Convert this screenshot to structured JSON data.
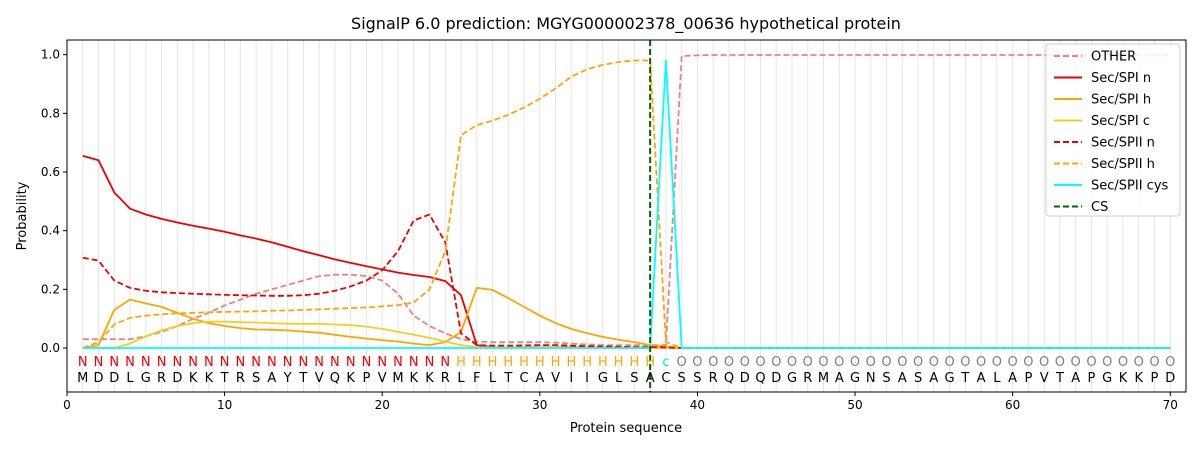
{
  "chart_data": {
    "type": "line",
    "title": "SignalP 6.0 prediction: MGYG000002378_00636 hypothetical protein",
    "xlabel": "Protein sequence",
    "ylabel": "Probability",
    "xlim": [
      0,
      71
    ],
    "ylim": [
      -0.15,
      1.05
    ],
    "xticks": [
      0,
      10,
      20,
      30,
      40,
      50,
      60,
      70
    ],
    "yticks": [
      0.0,
      0.2,
      0.4,
      0.6,
      0.8,
      1.0
    ],
    "grid": "vertical lines at each residue",
    "legend_position": "top-right",
    "residues": [
      "M",
      "D",
      "D",
      "L",
      "G",
      "R",
      "D",
      "K",
      "K",
      "T",
      "R",
      "S",
      "A",
      "Y",
      "T",
      "V",
      "Q",
      "K",
      "P",
      "V",
      "M",
      "K",
      "K",
      "R",
      "L",
      "F",
      "L",
      "T",
      "C",
      "A",
      "V",
      "I",
      "I",
      "G",
      "L",
      "S",
      "A",
      "C",
      "S",
      "S",
      "R",
      "Q",
      "D",
      "Q",
      "D",
      "G",
      "R",
      "M",
      "A",
      "G",
      "N",
      "S",
      "A",
      "S",
      "A",
      "G",
      "T",
      "A",
      "L",
      "A",
      "P",
      "V",
      "T",
      "A",
      "P",
      "G",
      "K",
      "K",
      "P",
      "D"
    ],
    "labels": [
      "N",
      "N",
      "N",
      "N",
      "N",
      "N",
      "N",
      "N",
      "N",
      "N",
      "N",
      "N",
      "N",
      "N",
      "N",
      "N",
      "N",
      "N",
      "N",
      "N",
      "N",
      "N",
      "N",
      "N",
      "H",
      "H",
      "H",
      "H",
      "H",
      "H",
      "H",
      "H",
      "H",
      "H",
      "H",
      "H",
      "H",
      "C",
      "O",
      "O",
      "O",
      "O",
      "O",
      "O",
      "O",
      "O",
      "O",
      "O",
      "O",
      "O",
      "O",
      "O",
      "O",
      "O",
      "O",
      "O",
      "O",
      "O",
      "O",
      "O",
      "O",
      "O",
      "O",
      "O",
      "O",
      "O",
      "O",
      "O",
      "O",
      "O"
    ],
    "label_colors": {
      "N": "#ee0000",
      "H": "#ffa500",
      "C": "#00e5e5",
      "O": "#808080"
    },
    "cleavage_site": 37,
    "series": [
      {
        "name": "OTHER",
        "color": "#f08080",
        "dash": true,
        "values": [
          0.03,
          0.03,
          0.03,
          0.03,
          0.04,
          0.055,
          0.075,
          0.1,
          0.12,
          0.145,
          0.165,
          0.185,
          0.2,
          0.215,
          0.23,
          0.245,
          0.25,
          0.25,
          0.245,
          0.23,
          0.185,
          0.11,
          0.075,
          0.05,
          0.03,
          0.022,
          0.02,
          0.02,
          0.02,
          0.02,
          0.018,
          0.015,
          0.012,
          0.01,
          0.01,
          0.01,
          0.01,
          0.01,
          0.995,
          0.998,
          0.999,
          0.999,
          0.999,
          0.999,
          0.999,
          0.999,
          0.999,
          0.999,
          0.999,
          0.999,
          0.999,
          0.999,
          0.999,
          0.999,
          0.999,
          0.999,
          0.999,
          0.999,
          0.999,
          0.999,
          0.999,
          0.999,
          0.999,
          0.999,
          0.999,
          0.999,
          0.999,
          0.999,
          0.999,
          0.999
        ]
      },
      {
        "name": "Sec/SPI n",
        "color": "#ee0000",
        "dash": false,
        "values": [
          0.655,
          0.64,
          0.53,
          0.475,
          0.455,
          0.44,
          0.428,
          0.417,
          0.407,
          0.396,
          0.384,
          0.373,
          0.36,
          0.345,
          0.33,
          0.316,
          0.302,
          0.29,
          0.279,
          0.268,
          0.257,
          0.249,
          0.242,
          0.228,
          0.18,
          0.01,
          0.003,
          0.002,
          0.002,
          0.002,
          0.002,
          0.002,
          0.001,
          0.001,
          0.001,
          0.001,
          0.001,
          0.001,
          0.0,
          0.0,
          0.0,
          0.0,
          0.0,
          0.0,
          0.0,
          0.0,
          0.0,
          0.0,
          0.0,
          0.0,
          0.0,
          0.0,
          0.0,
          0.0,
          0.0,
          0.0,
          0.0,
          0.0,
          0.0,
          0.0,
          0.0,
          0.0,
          0.0,
          0.0,
          0.0,
          0.0,
          0.0,
          0.0,
          0.0,
          0.0
        ]
      },
      {
        "name": "Sec/SPI h",
        "color": "#ffa500",
        "dash": false,
        "values": [
          0.0,
          0.01,
          0.13,
          0.165,
          0.152,
          0.14,
          0.12,
          0.1,
          0.085,
          0.075,
          0.068,
          0.063,
          0.062,
          0.06,
          0.056,
          0.052,
          0.045,
          0.038,
          0.032,
          0.027,
          0.022,
          0.015,
          0.01,
          0.02,
          0.055,
          0.205,
          0.198,
          0.17,
          0.14,
          0.11,
          0.085,
          0.065,
          0.05,
          0.038,
          0.028,
          0.02,
          0.01,
          0.005,
          0.0,
          0.0,
          0.0,
          0.0,
          0.0,
          0.0,
          0.0,
          0.0,
          0.0,
          0.0,
          0.0,
          0.0,
          0.0,
          0.0,
          0.0,
          0.0,
          0.0,
          0.0,
          0.0,
          0.0,
          0.0,
          0.0,
          0.0,
          0.0,
          0.0,
          0.0,
          0.0,
          0.0,
          0.0,
          0.0,
          0.0,
          0.0
        ]
      },
      {
        "name": "Sec/SPI c",
        "color": "#f0d020",
        "dash": false,
        "values": [
          0.0,
          0.0,
          0.0,
          0.015,
          0.04,
          0.06,
          0.075,
          0.085,
          0.09,
          0.09,
          0.088,
          0.087,
          0.085,
          0.083,
          0.082,
          0.082,
          0.08,
          0.078,
          0.073,
          0.065,
          0.055,
          0.045,
          0.035,
          0.022,
          0.01,
          0.003,
          0.002,
          0.002,
          0.001,
          0.001,
          0.001,
          0.001,
          0.001,
          0.001,
          0.001,
          0.001,
          0.001,
          0.001,
          0.0,
          0.0,
          0.0,
          0.0,
          0.0,
          0.0,
          0.0,
          0.0,
          0.0,
          0.0,
          0.0,
          0.0,
          0.0,
          0.0,
          0.0,
          0.0,
          0.0,
          0.0,
          0.0,
          0.0,
          0.0,
          0.0,
          0.0,
          0.0,
          0.0,
          0.0,
          0.0,
          0.0,
          0.0,
          0.0,
          0.0,
          0.0
        ]
      },
      {
        "name": "Sec/SPII n",
        "color": "#ee0000",
        "dash": true,
        "values": [
          0.308,
          0.298,
          0.23,
          0.205,
          0.195,
          0.19,
          0.187,
          0.185,
          0.183,
          0.181,
          0.18,
          0.179,
          0.178,
          0.178,
          0.18,
          0.185,
          0.195,
          0.21,
          0.23,
          0.265,
          0.33,
          0.435,
          0.455,
          0.36,
          0.05,
          0.01,
          0.008,
          0.008,
          0.009,
          0.01,
          0.01,
          0.008,
          0.006,
          0.005,
          0.004,
          0.003,
          0.003,
          0.002,
          0.0,
          0.0,
          0.0,
          0.0,
          0.0,
          0.0,
          0.0,
          0.0,
          0.0,
          0.0,
          0.0,
          0.0,
          0.0,
          0.0,
          0.0,
          0.0,
          0.0,
          0.0,
          0.0,
          0.0,
          0.0,
          0.0,
          0.0,
          0.0,
          0.0,
          0.0,
          0.0,
          0.0,
          0.0,
          0.0,
          0.0,
          0.0
        ]
      },
      {
        "name": "Sec/SPII h",
        "color": "#ffa500",
        "dash": true,
        "values": [
          0.0,
          0.02,
          0.08,
          0.103,
          0.11,
          0.115,
          0.118,
          0.12,
          0.122,
          0.123,
          0.124,
          0.125,
          0.127,
          0.128,
          0.13,
          0.132,
          0.134,
          0.136,
          0.138,
          0.142,
          0.146,
          0.155,
          0.2,
          0.33,
          0.725,
          0.76,
          0.775,
          0.795,
          0.82,
          0.85,
          0.885,
          0.925,
          0.95,
          0.965,
          0.975,
          0.98,
          0.98,
          0.02,
          0.0,
          0.0,
          0.0,
          0.0,
          0.0,
          0.0,
          0.0,
          0.0,
          0.0,
          0.0,
          0.0,
          0.0,
          0.0,
          0.0,
          0.0,
          0.0,
          0.0,
          0.0,
          0.0,
          0.0,
          0.0,
          0.0,
          0.0,
          0.0,
          0.0,
          0.0,
          0.0,
          0.0,
          0.0,
          0.0,
          0.0,
          0.0
        ]
      },
      {
        "name": "Sec/SPII cys",
        "color": "#00ffff",
        "dash": false,
        "values": [
          0.0,
          0.0,
          0.0,
          0.0,
          0.0,
          0.0,
          0.0,
          0.0,
          0.0,
          0.0,
          0.0,
          0.0,
          0.0,
          0.0,
          0.0,
          0.0,
          0.0,
          0.0,
          0.0,
          0.0,
          0.0,
          0.0,
          0.0,
          0.0,
          0.0,
          0.0,
          0.0,
          0.0,
          0.0,
          0.0,
          0.0,
          0.0,
          0.0,
          0.0,
          0.0,
          0.0,
          0.0,
          0.98,
          0.0,
          0.0,
          0.0,
          0.0,
          0.0,
          0.0,
          0.0,
          0.0,
          0.0,
          0.0,
          0.0,
          0.0,
          0.0,
          0.0,
          0.0,
          0.0,
          0.0,
          0.0,
          0.0,
          0.0,
          0.0,
          0.0,
          0.0,
          0.0,
          0.0,
          0.0,
          0.0,
          0.0,
          0.0,
          0.0,
          0.0,
          0.0
        ]
      },
      {
        "name": "CS",
        "color": "#006400",
        "dash": true,
        "vertical_at": 37
      }
    ]
  }
}
